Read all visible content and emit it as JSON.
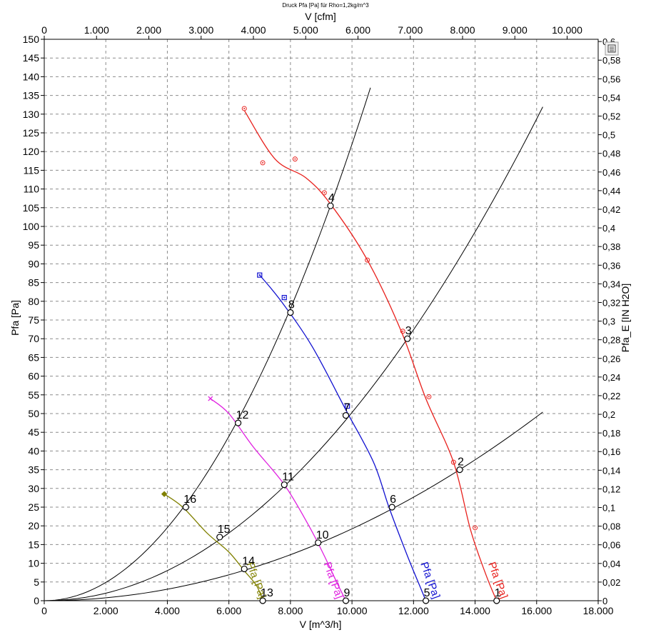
{
  "chart_data": {
    "type": "line",
    "title": "Druck Pfa [Pa] für Rho=1,2kg/m^3",
    "xlabel": "V [m^3/h]",
    "x2label": "V [cfm]",
    "ylabel": "Pfa [Pa]",
    "y2label": "Pfa_E [IN H2O]",
    "xlim": [
      0,
      18000
    ],
    "ylim": [
      0,
      150
    ],
    "x2lim": [
      0,
      10594
    ],
    "y2lim": [
      0,
      0.6024
    ],
    "grid": true,
    "x_ticks": [
      "0",
      "2.000",
      "4.000",
      "6.000",
      "8.000",
      "10.000",
      "12.000",
      "14.000",
      "16.000",
      "18.000"
    ],
    "x2_ticks": [
      "0",
      "1.000",
      "2.000",
      "3.000",
      "4.000",
      "5.000",
      "6.000",
      "7.000",
      "8.000",
      "9.000",
      "10.000"
    ],
    "y_ticks": [
      "0",
      "5",
      "10",
      "15",
      "20",
      "25",
      "30",
      "35",
      "40",
      "45",
      "50",
      "55",
      "60",
      "65",
      "70",
      "75",
      "80",
      "85",
      "90",
      "95",
      "100",
      "105",
      "110",
      "115",
      "120",
      "125",
      "130",
      "135",
      "140",
      "145",
      "150"
    ],
    "y2_ticks": [
      "0",
      "0,02",
      "0,04",
      "0,06",
      "0,08",
      "0,1",
      "0,12",
      "0,14",
      "0,16",
      "0,18",
      "0,2",
      "0,22",
      "0,24",
      "0,26",
      "0,28",
      "0,3",
      "0,32",
      "0,34",
      "0,36",
      "0,38",
      "0,4",
      "0,42",
      "0,44",
      "0,46",
      "0,48",
      "0,5",
      "0,52",
      "0,54",
      "0,56",
      "0,58",
      "0,6"
    ],
    "series": [
      {
        "name": "Pfa [Pa]",
        "color": "#e8201c",
        "marker": "circle",
        "label_at": [
          14750,
          0
        ],
        "points": [
          [
            6500,
            131
          ],
          [
            7500,
            118
          ],
          [
            8500,
            113
          ],
          [
            9300,
            106
          ],
          [
            10500,
            91
          ],
          [
            11600,
            72
          ],
          [
            12400,
            54
          ],
          [
            13300,
            37
          ],
          [
            13850,
            19
          ],
          [
            14350,
            7
          ],
          [
            14700,
            0
          ]
        ],
        "markers": [
          [
            6500,
            131.5
          ],
          [
            7100,
            117
          ],
          [
            8150,
            118
          ],
          [
            9100,
            109
          ],
          [
            10500,
            91
          ],
          [
            11650,
            72
          ],
          [
            12500,
            54.5
          ],
          [
            13300,
            37
          ],
          [
            14000,
            19.5
          ]
        ]
      },
      {
        "name": "Pfa [Pa]",
        "color": "#1010d0",
        "marker": "square",
        "label_at": [
          12550,
          0
        ],
        "points": [
          [
            7000,
            87
          ],
          [
            7700,
            80
          ],
          [
            8700,
            68
          ],
          [
            9800,
            51
          ],
          [
            10700,
            37
          ],
          [
            11200,
            25
          ],
          [
            11800,
            12
          ],
          [
            12200,
            4
          ],
          [
            12400,
            0
          ]
        ],
        "markers": [
          [
            7000,
            87
          ],
          [
            7800,
            81
          ],
          [
            9850,
            52
          ]
        ]
      },
      {
        "name": "Pfa [Pa]",
        "color": "#e020e0",
        "marker": "x",
        "label_at": [
          9400,
          0
        ],
        "points": [
          [
            5400,
            54
          ],
          [
            6000,
            50
          ],
          [
            6800,
            41
          ],
          [
            7800,
            31
          ],
          [
            8600,
            20
          ],
          [
            9100,
            12
          ],
          [
            9500,
            5
          ],
          [
            9800,
            0
          ]
        ],
        "markers": [
          [
            5400,
            54
          ]
        ]
      },
      {
        "name": "Pfa [Pa]",
        "color": "#808000",
        "marker": "diamond",
        "label_at": [
          6900,
          0
        ],
        "points": [
          [
            3900,
            28.5
          ],
          [
            4500,
            25
          ],
          [
            5300,
            18
          ],
          [
            6000,
            13
          ],
          [
            6500,
            8
          ],
          [
            6900,
            4
          ],
          [
            7100,
            0
          ]
        ],
        "markers": [
          [
            3900,
            28.5
          ]
        ]
      }
    ],
    "system_curves": [
      {
        "points": [
          [
            0,
            0
          ],
          [
            9300,
            105.5
          ],
          [
            10600,
            137
          ]
        ]
      },
      {
        "points": [
          [
            0,
            0
          ],
          [
            11800,
            70
          ],
          [
            16200,
            130
          ]
        ]
      },
      {
        "points": [
          [
            0,
            0
          ],
          [
            13500,
            35
          ],
          [
            16200,
            51
          ]
        ]
      }
    ],
    "operating_points": [
      {
        "label": "1",
        "x": 14700,
        "y": 0
      },
      {
        "label": "2",
        "x": 13500,
        "y": 35
      },
      {
        "label": "3",
        "x": 11800,
        "y": 70
      },
      {
        "label": "4",
        "x": 9300,
        "y": 105.5
      },
      {
        "label": "5",
        "x": 12400,
        "y": 0
      },
      {
        "label": "6",
        "x": 11300,
        "y": 25
      },
      {
        "label": "7",
        "x": 9800,
        "y": 49.5
      },
      {
        "label": "8",
        "x": 8000,
        "y": 77
      },
      {
        "label": "9",
        "x": 9800,
        "y": 0
      },
      {
        "label": "10",
        "x": 8900,
        "y": 15.5
      },
      {
        "label": "11",
        "x": 7800,
        "y": 31
      },
      {
        "label": "12",
        "x": 6300,
        "y": 47.5
      },
      {
        "label": "13",
        "x": 7100,
        "y": 0
      },
      {
        "label": "14",
        "x": 6500,
        "y": 8.5
      },
      {
        "label": "15",
        "x": 5700,
        "y": 17
      },
      {
        "label": "16",
        "x": 4600,
        "y": 25
      }
    ],
    "menu_icon": "chart-menu-icon"
  }
}
